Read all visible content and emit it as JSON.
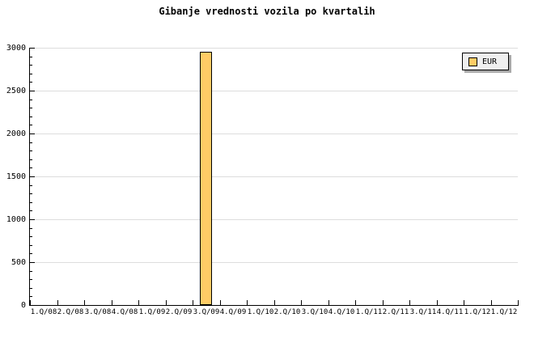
{
  "chart_data": {
    "type": "bar",
    "title": "Gibanje vrednosti vozila po kvartalih",
    "categories": [
      "1.Q/08",
      "2.Q/08",
      "3.Q/08",
      "4.Q/08",
      "1.Q/09",
      "2.Q/09",
      "3.Q/09",
      "4.Q/09",
      "1.Q/10",
      "2.Q/10",
      "3.Q/10",
      "4.Q/10",
      "1.Q/11",
      "2.Q/11",
      "3.Q/11",
      "4.Q/11",
      "1.Q/12",
      "1.Q/12"
    ],
    "series": [
      {
        "name": "EUR",
        "values": [
          0,
          0,
          0,
          0,
          0,
          0,
          2950,
          0,
          0,
          0,
          0,
          0,
          0,
          0,
          0,
          0,
          0,
          0
        ]
      }
    ],
    "xlabel": "",
    "ylabel": "",
    "ylim": [
      0,
      3000
    ],
    "yticks": [
      0,
      500,
      1000,
      1500,
      2000,
      2500,
      3000
    ],
    "yminor_step": 100,
    "grid": "horizontal-major",
    "legend_position": "top-right",
    "colors": {
      "bar_fill": "#FFCC66",
      "bar_border": "#000000",
      "grid": "#DDDDDD",
      "axis": "#000000",
      "legend_bg": "#EFEFEF",
      "legend_shadow": "#AAAAAA",
      "background": "#FFFFFF"
    }
  }
}
